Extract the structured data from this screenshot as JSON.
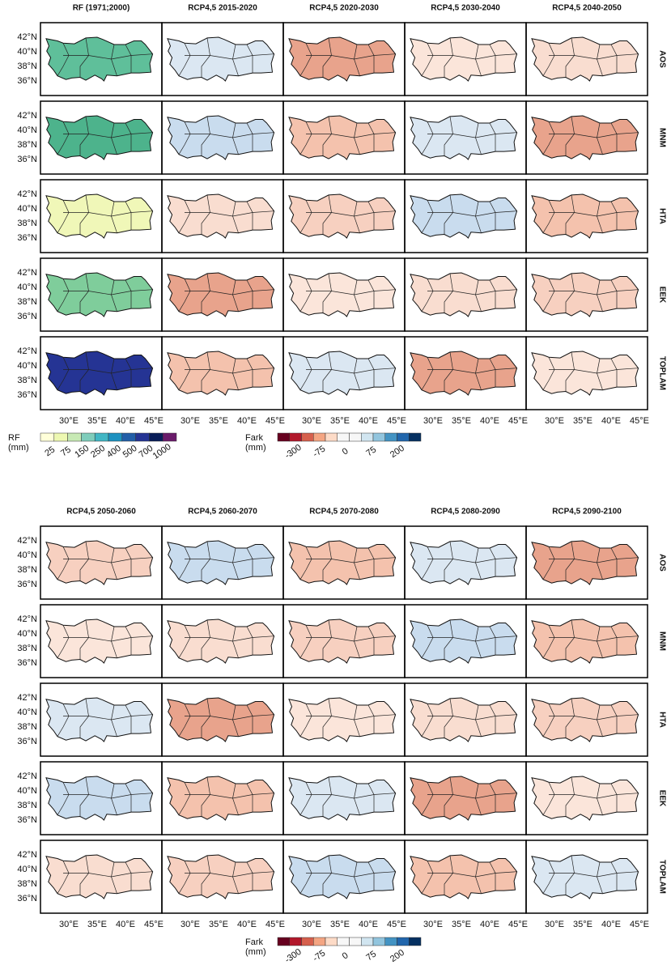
{
  "top": {
    "columns": [
      "RF (1971;2000)",
      "RCP4,5 2015-2020",
      "RCP4,5 2020-2030",
      "RCP4,5 2030-2040",
      "RCP4,5 2040-2050"
    ],
    "rows": [
      "AOS",
      "MNM",
      "HTA",
      "EEK",
      "TOPLAM"
    ]
  },
  "bottom": {
    "columns": [
      "RCP4,5 2050-2060",
      "RCP4,5 2060-2070",
      "RCP4,5 2070-2080",
      "RCP4,5 2080-2090",
      "RCP4,5 2090-2100"
    ],
    "rows": [
      "AOS",
      "MNM",
      "HTA",
      "EEK",
      "TOPLAM"
    ]
  },
  "lat_ticks": [
    "42°N",
    "40°N",
    "38°N",
    "36°N"
  ],
  "lon_ticks": [
    "30°E",
    "35°E",
    "40°E",
    "45°E"
  ],
  "colorbars": [
    {
      "title": "RF",
      "unit": "(mm)",
      "labels": [
        "25",
        "75",
        "150",
        "250",
        "400",
        "500",
        "700",
        "1000"
      ],
      "colors": [
        "#ffffd9",
        "#edf8b1",
        "#c7e9b4",
        "#7fcdbb",
        "#41b6c4",
        "#1d91c0",
        "#225ea8",
        "#253494",
        "#081d58",
        "#6a1b6a"
      ]
    },
    {
      "title": "Fark",
      "unit": "(mm)",
      "labels": [
        "-300",
        "-75",
        "0",
        "75",
        "200"
      ],
      "colors": [
        "#67001f",
        "#b2182b",
        "#d6604d",
        "#f4a582",
        "#fddbc7",
        "#f7f7f7",
        "#f7f7f7",
        "#d1e5f0",
        "#92c5de",
        "#4393c3",
        "#2166ac",
        "#053061"
      ]
    },
    {
      "title": "Fark",
      "unit": "(mm)",
      "labels": [
        "-300",
        "-75",
        "0",
        "75",
        "200"
      ],
      "colors": [
        "#67001f",
        "#b2182b",
        "#d6604d",
        "#f4a582",
        "#fddbc7",
        "#f7f7f7",
        "#f7f7f7",
        "#d1e5f0",
        "#92c5de",
        "#4393c3",
        "#2166ac",
        "#053061"
      ]
    }
  ]
}
